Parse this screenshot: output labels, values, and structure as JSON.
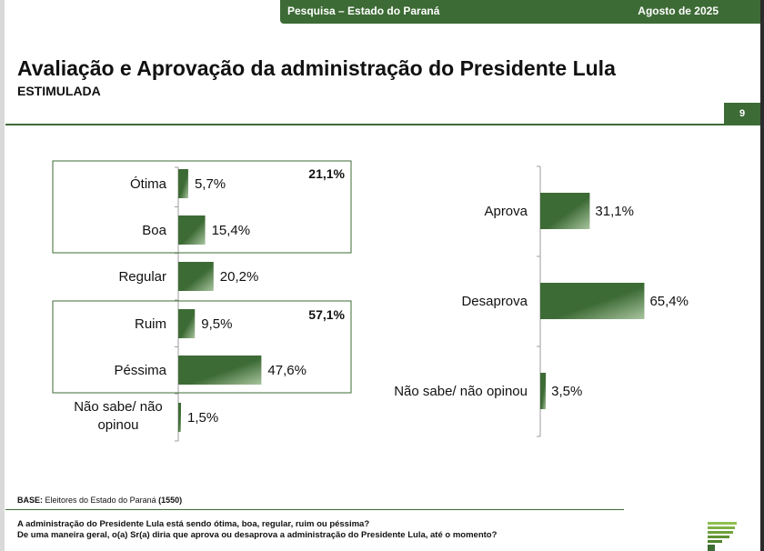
{
  "header": {
    "banner_left": "Pesquisa – Estado do Paraná",
    "banner_right": "Agosto de 2025",
    "title": "Avaliação e Aprovação da administração do Presidente Lula",
    "subtitle": "ESTIMULADA",
    "page_number": "9"
  },
  "colors": {
    "brand_green": "#3d6b35",
    "bar_dark": "#3d6b35",
    "bar_light": "#a9c49f"
  },
  "chart_data": [
    {
      "type": "bar",
      "orientation": "horizontal",
      "title": "Avaliação",
      "categories": [
        "Ótima",
        "Boa",
        "Regular",
        "Ruim",
        "Péssima",
        "Não sabe/ não opinou"
      ],
      "values": [
        5.7,
        15.4,
        20.2,
        9.5,
        47.6,
        1.5
      ],
      "value_labels": [
        "5,7%",
        "15,4%",
        "20,2%",
        "9,5%",
        "47,6%",
        "1,5%"
      ],
      "groups": [
        {
          "name": "positive",
          "label": "21,1%",
          "value": 21.1
        },
        {
          "name": "negative",
          "label": "57,1%",
          "value": 57.1
        }
      ],
      "xlim": [
        0,
        100
      ]
    },
    {
      "type": "bar",
      "orientation": "horizontal",
      "title": "Aprovação",
      "categories": [
        "Aprova",
        "Desaprova",
        "Não sabe/ não opinou"
      ],
      "values": [
        31.1,
        65.4,
        3.5
      ],
      "value_labels": [
        "31,1%",
        "65,4%",
        "3,5%"
      ],
      "xlim": [
        0,
        100
      ]
    }
  ],
  "footer": {
    "base_label": "BASE:",
    "base_text": "Eleitores do Estado do Paraná",
    "base_count": "(1550)",
    "question1": "A administração do Presidente Lula está sendo ótima, boa, regular, ruim ou péssima?",
    "question2": "De uma maneira geral, o(a) Sr(a) diria que aprova ou desaprova a administração do Presidente Lula, até o momento?"
  }
}
